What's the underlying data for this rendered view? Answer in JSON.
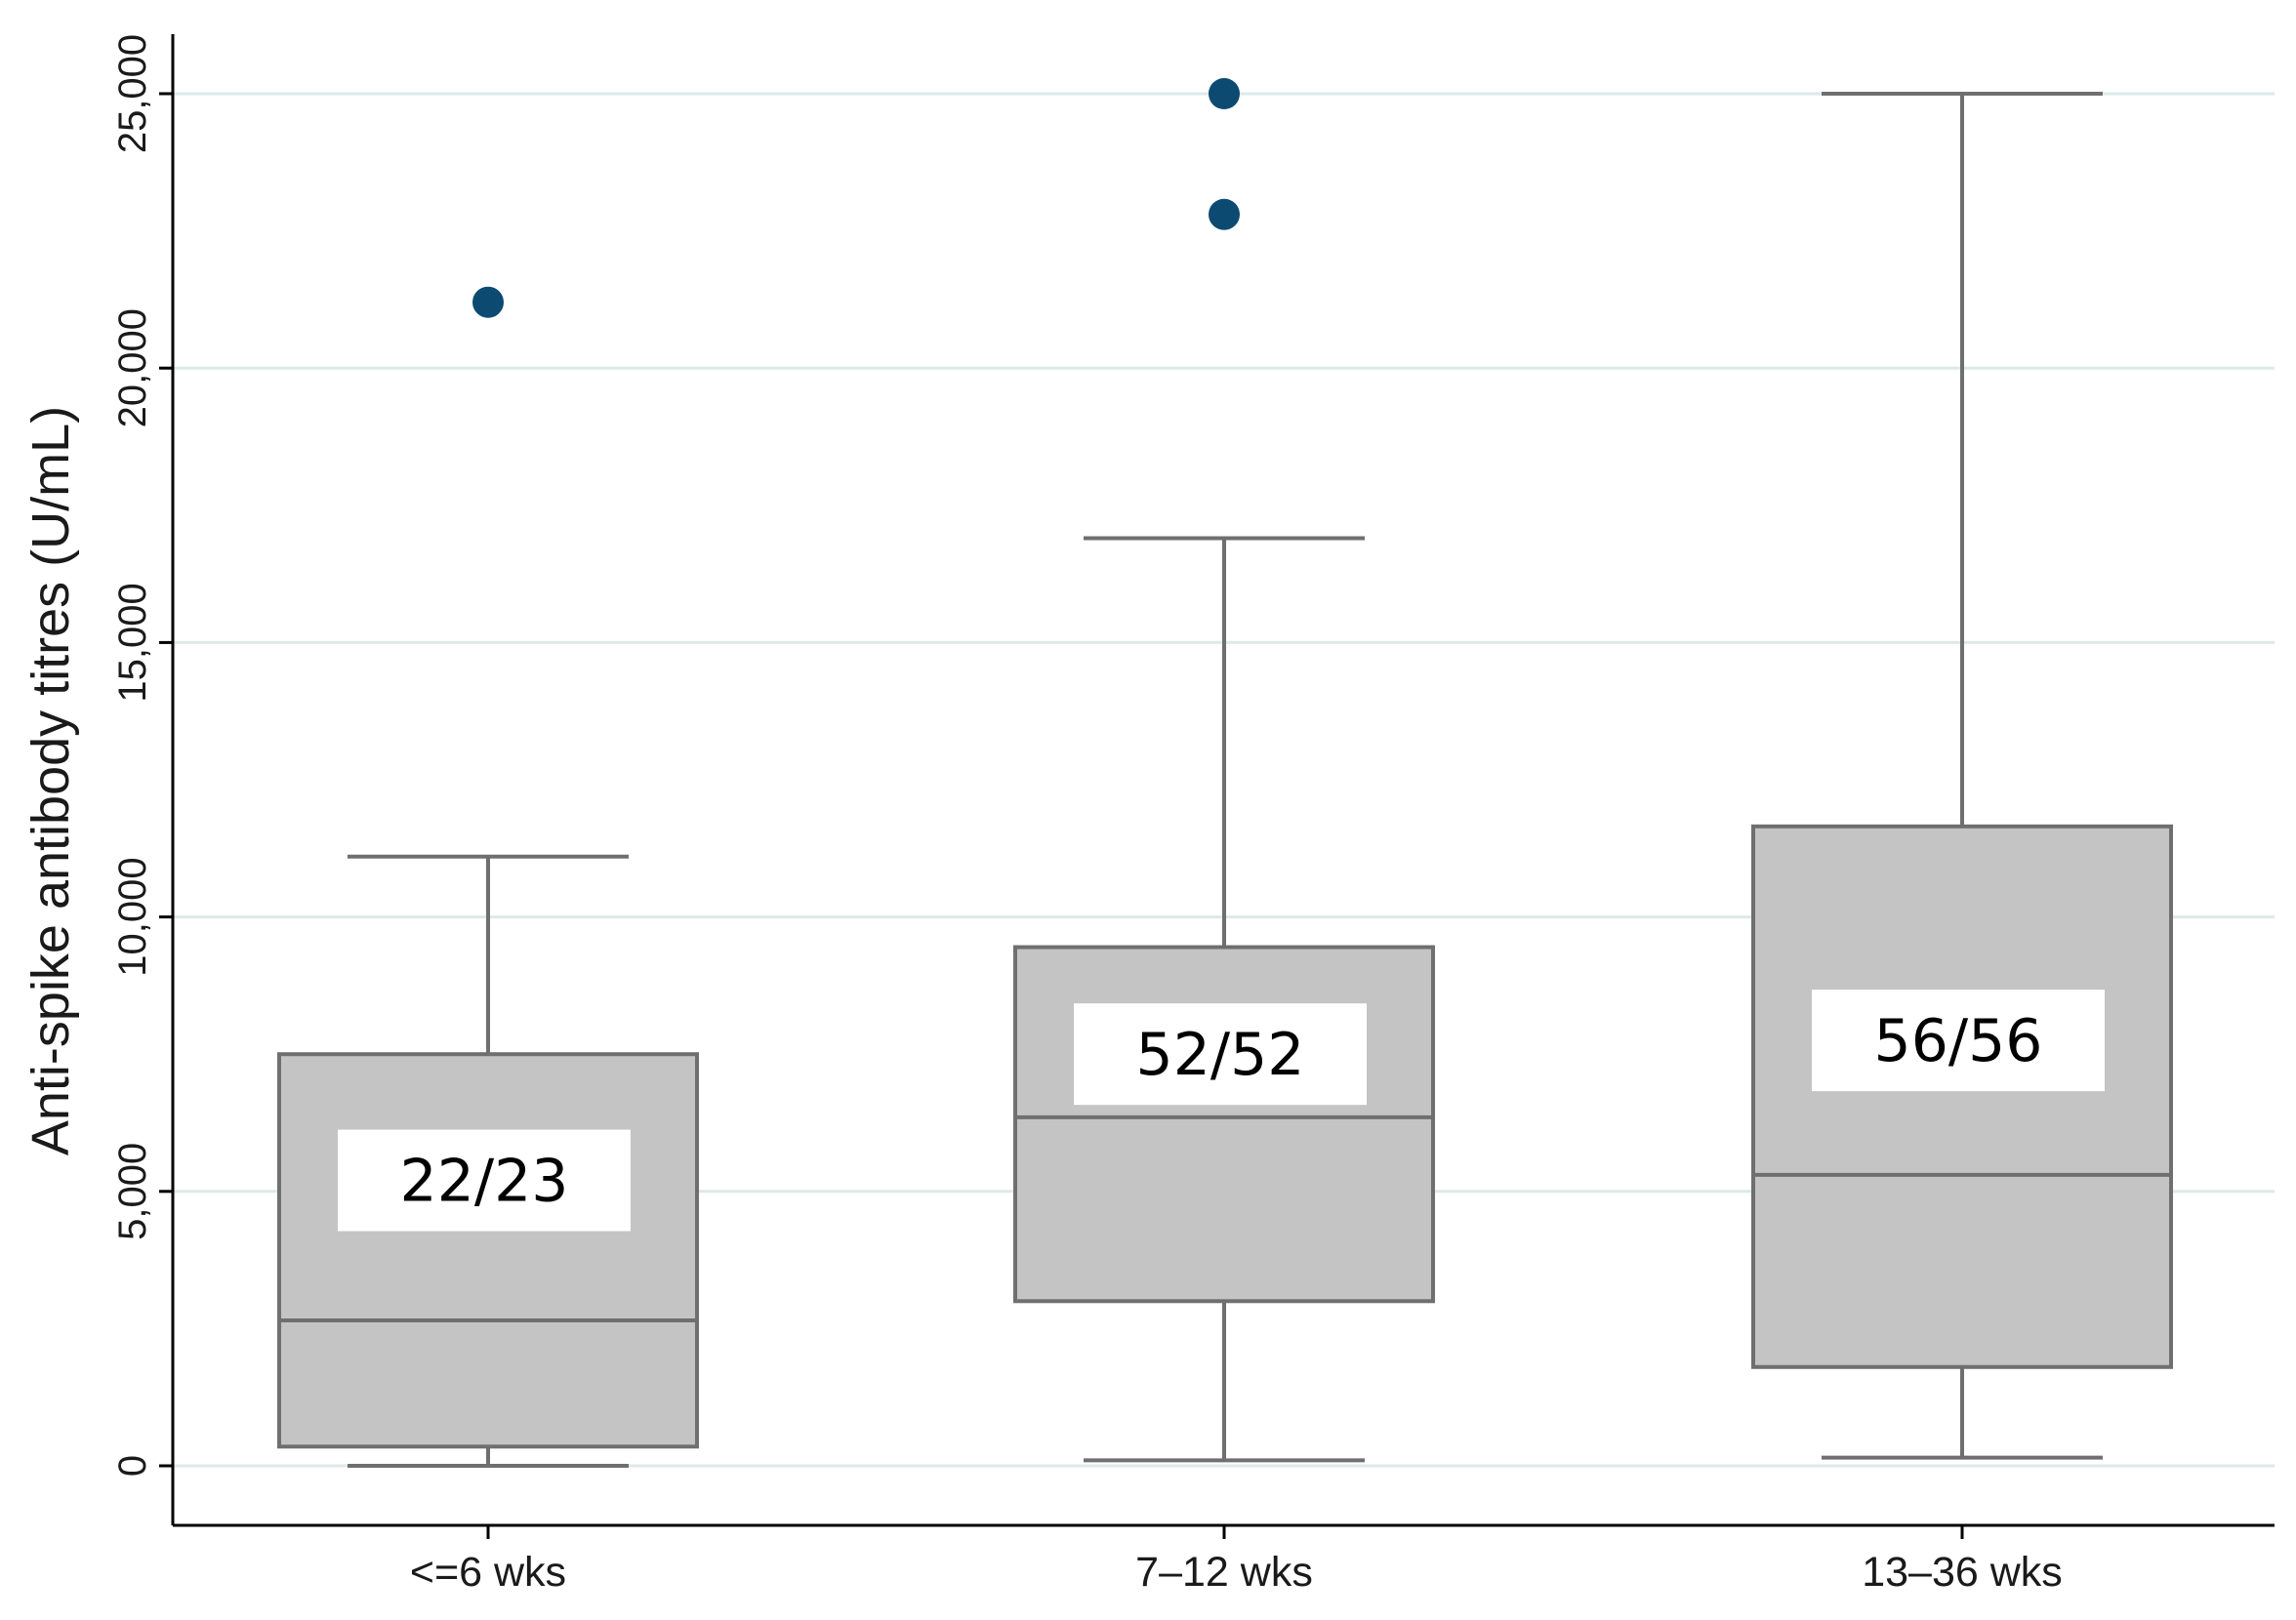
{
  "chart_data": {
    "type": "box",
    "ylabel": "Anti-spike antibody titres (U/mL)",
    "xlabel": "",
    "ylim": [
      -1000,
      26500
    ],
    "yticks": [
      0,
      5000,
      10000,
      15000,
      20000,
      25000
    ],
    "ytick_labels": [
      "0",
      "5,000",
      "10,000",
      "15,000",
      "20,000",
      "25,000"
    ],
    "grid": true,
    "categories": [
      "<=6 wks",
      "7–12 wks",
      "13–36 wks"
    ],
    "boxes": [
      {
        "category": "<=6 wks",
        "whisker_low": 0,
        "q1": 350,
        "median": 2650,
        "q3": 7500,
        "whisker_high": 11100,
        "outliers": [
          21200
        ],
        "annotation": "22/23",
        "annotation_level": 5200
      },
      {
        "category": "7–12 wks",
        "whisker_low": 100,
        "q1": 3000,
        "median": 6350,
        "q3": 9450,
        "whisker_high": 16900,
        "outliers": [
          22800,
          25000
        ],
        "annotation": "52/52",
        "annotation_level": 7500
      },
      {
        "category": "13–36 wks",
        "whisker_low": 150,
        "q1": 1800,
        "median": 5300,
        "q3": 11650,
        "whisker_high": 25000,
        "outliers": [],
        "annotation": "56/56",
        "annotation_level": 7750
      }
    ],
    "colors": {
      "box_fill": "#c4c4c4",
      "box_stroke": "#6f6f6f",
      "outlier": "#0d4a72",
      "grid": "#dde9ea",
      "axis": "#000000"
    }
  }
}
